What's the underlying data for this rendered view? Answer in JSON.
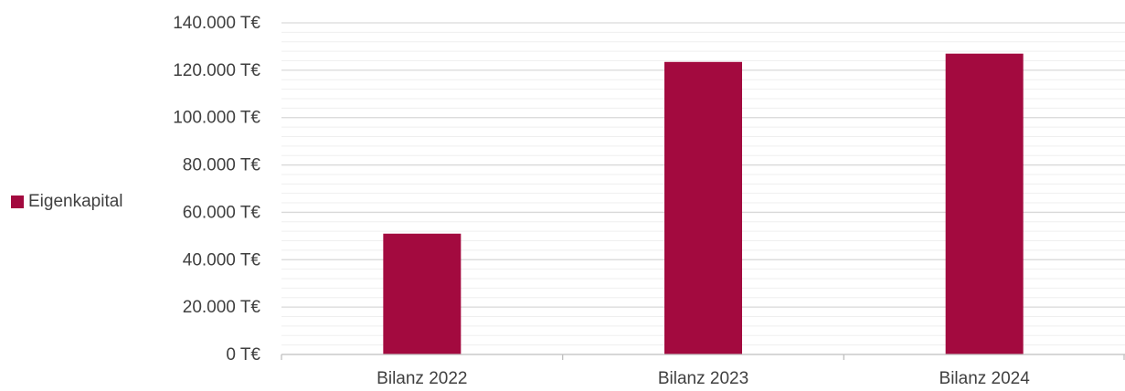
{
  "chart_data": {
    "type": "bar",
    "categories": [
      "Bilanz 2022",
      "Bilanz 2023",
      "Bilanz 2024"
    ],
    "series": [
      {
        "name": "Eigenkapital",
        "values": [
          51000,
          123500,
          127000
        ],
        "color": "#A30A3F"
      }
    ],
    "yticks": [
      0,
      20000,
      40000,
      60000,
      80000,
      100000,
      120000,
      140000
    ],
    "ytick_labels": [
      "0 T€",
      "20.000 T€",
      "40.000 T€",
      "60.000 T€",
      "80.000 T€",
      "100.000 T€",
      "120.000 T€",
      "140.000 T€"
    ],
    "ylim": [
      0,
      140000
    ],
    "minor_gridline_step": 4000,
    "grid": true,
    "legend_position": "left"
  }
}
